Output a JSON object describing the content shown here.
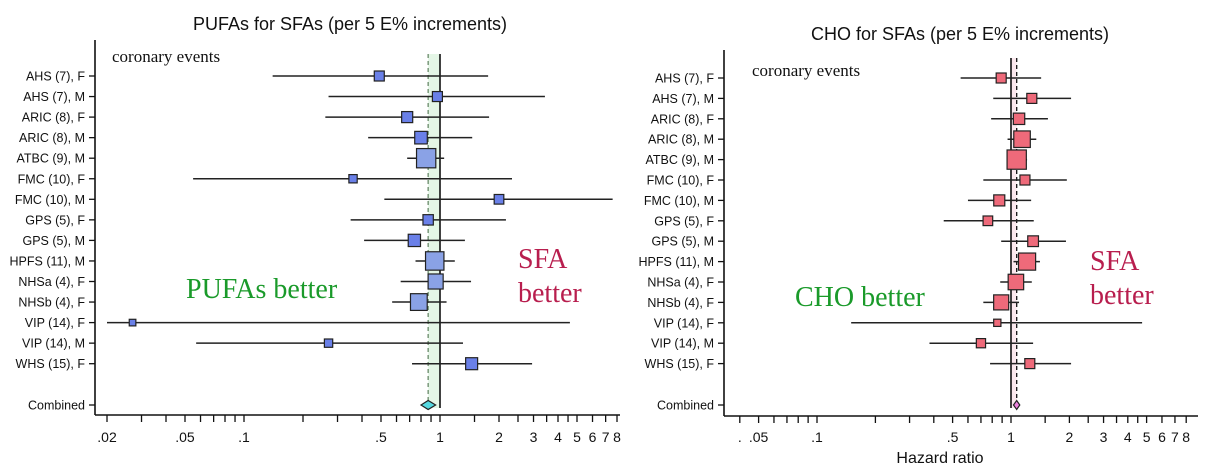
{
  "chart_data": [
    {
      "type": "forest",
      "title": "PUFAs for SFAs (per 5 E% increments)",
      "subtitle": "coronary events",
      "xlabel": "",
      "xscale": "log",
      "xlim": [
        0.0185,
        8.3
      ],
      "xticks": [
        0.02,
        0.03,
        0.04,
        0.05,
        0.06,
        0.07,
        0.08,
        0.09,
        0.1,
        0.2,
        0.3,
        0.4,
        0.5,
        0.6,
        0.7,
        0.8,
        0.9,
        1,
        1.5,
        2,
        2.5,
        3,
        3.5,
        4,
        4.5,
        5,
        6,
        7,
        8
      ],
      "xtick_labels": [
        {
          "value": 0.02,
          "label": ".02"
        },
        {
          "value": 0.05,
          "label": ".05"
        },
        {
          "value": 0.1,
          "label": ".1"
        },
        {
          "value": 0.5,
          "label": ".5"
        },
        {
          "value": 1,
          "label": "1"
        },
        {
          "value": 2,
          "label": "2"
        },
        {
          "value": 3,
          "label": "3"
        },
        {
          "value": 4,
          "label": "4"
        },
        {
          "value": 5,
          "label": "5"
        },
        {
          "value": 6,
          "label": "6"
        },
        {
          "value": 7,
          "label": "7"
        },
        {
          "value": 8,
          "label": "8"
        }
      ],
      "reference_line": 1,
      "pooled_line": 0.87,
      "annotation_left": "PUFAs better",
      "annotation_right_1": "SFA",
      "annotation_right_2": "better",
      "colors": {
        "box": "#6a80e8",
        "box_light": "#8aa2e6",
        "diamond": "#55d8e0",
        "band": "#e4f6e6",
        "annot_left": "#1a9a2a",
        "annot_right": "#b81e4e"
      },
      "studies": [
        {
          "label": "AHS (7), F",
          "hr": 0.49,
          "lo": 0.14,
          "hi": 1.76,
          "weight": 1
        },
        {
          "label": "AHS (7), M",
          "hr": 0.97,
          "lo": 0.27,
          "hi": 3.43,
          "weight": 1
        },
        {
          "label": "ARIC (8), F",
          "hr": 0.68,
          "lo": 0.26,
          "hi": 1.78,
          "weight": 1.3
        },
        {
          "label": "ARIC (8), M",
          "hr": 0.8,
          "lo": 0.43,
          "hi": 1.46,
          "weight": 1.8
        },
        {
          "label": "ATBC (9), M",
          "hr": 0.85,
          "lo": 0.68,
          "hi": 1.05,
          "weight": 5
        },
        {
          "label": "FMC (10), F",
          "hr": 0.36,
          "lo": 0.055,
          "hi": 2.33,
          "weight": 0.6
        },
        {
          "label": "FMC (10), M",
          "hr": 2.0,
          "lo": 0.52,
          "hi": 7.6,
          "weight": 0.9
        },
        {
          "label": "GPS (5), F",
          "hr": 0.87,
          "lo": 0.35,
          "hi": 2.17,
          "weight": 1.1
        },
        {
          "label": "GPS (5), M",
          "hr": 0.74,
          "lo": 0.41,
          "hi": 1.34,
          "weight": 1.7
        },
        {
          "label": "HPFS (11), M",
          "hr": 0.94,
          "lo": 0.75,
          "hi": 1.19,
          "weight": 4.5
        },
        {
          "label": "NHSa (4), F",
          "hr": 0.95,
          "lo": 0.63,
          "hi": 1.44,
          "weight": 2.8
        },
        {
          "label": "NHSb (4), F",
          "hr": 0.78,
          "lo": 0.57,
          "hi": 1.08,
          "weight": 3.6
        },
        {
          "label": "VIP (14), F",
          "hr": 0.027,
          "lo": 0.02,
          "hi": 4.6,
          "weight": 0.3
        },
        {
          "label": "VIP (14), M",
          "hr": 0.27,
          "lo": 0.057,
          "hi": 1.31,
          "weight": 0.6
        },
        {
          "label": "WHS (15), F",
          "hr": 1.45,
          "lo": 0.72,
          "hi": 2.95,
          "weight": 1.6
        }
      ],
      "combined": {
        "label": "Combined",
        "hr": 0.87,
        "lo": 0.8,
        "hi": 0.95
      }
    },
    {
      "type": "forest",
      "title": "CHO for SFAs (per 5 E% increments)",
      "subtitle": "coronary events",
      "xlabel": "Hazard ratio",
      "xscale": "log",
      "xlim": [
        0.033,
        9.5
      ],
      "xticks": [
        0.04,
        0.05,
        0.06,
        0.07,
        0.08,
        0.09,
        0.1,
        0.2,
        0.3,
        0.4,
        0.5,
        0.6,
        0.7,
        0.8,
        0.9,
        1,
        1.5,
        2,
        2.5,
        3,
        3.5,
        4,
        4.5,
        5,
        6,
        7,
        8
      ],
      "xtick_labels": [
        {
          "value": 0.04,
          "label": "."
        },
        {
          "value": 0.05,
          "label": ".05"
        },
        {
          "value": 0.1,
          "label": ".1"
        },
        {
          "value": 0.5,
          "label": ".5"
        },
        {
          "value": 1,
          "label": "1"
        },
        {
          "value": 2,
          "label": "2"
        },
        {
          "value": 3,
          "label": "3"
        },
        {
          "value": 4,
          "label": "4"
        },
        {
          "value": 5,
          "label": "5"
        },
        {
          "value": 6,
          "label": "6"
        },
        {
          "value": 7,
          "label": "7"
        },
        {
          "value": 8,
          "label": "8"
        }
      ],
      "reference_line": 1,
      "pooled_line": 1.07,
      "annotation_left": "CHO better",
      "annotation_right_1": "SFA",
      "annotation_right_2": "better",
      "colors": {
        "box": "#ee6a7a",
        "box_light": "#f08a96",
        "diamond": "#ee82e0",
        "band": "#fbe8ee",
        "annot_left": "#1a9a2a",
        "annot_right": "#b81e4e"
      },
      "studies": [
        {
          "label": "AHS (7), F",
          "hr": 0.89,
          "lo": 0.55,
          "hi": 1.43,
          "weight": 1
        },
        {
          "label": "AHS (7), M",
          "hr": 1.28,
          "lo": 0.81,
          "hi": 2.04,
          "weight": 1
        },
        {
          "label": "ARIC (8), F",
          "hr": 1.1,
          "lo": 0.79,
          "hi": 1.55,
          "weight": 1.4
        },
        {
          "label": "ARIC (8), M",
          "hr": 1.14,
          "lo": 0.96,
          "hi": 1.35,
          "weight": 3.5
        },
        {
          "label": "ATBC (9), M",
          "hr": 1.07,
          "lo": 0.95,
          "hi": 1.21,
          "weight": 5
        },
        {
          "label": "FMC (10), F",
          "hr": 1.18,
          "lo": 0.72,
          "hi": 1.94,
          "weight": 1
        },
        {
          "label": "FMC (10), M",
          "hr": 0.87,
          "lo": 0.6,
          "hi": 1.27,
          "weight": 1.3
        },
        {
          "label": "GPS (5), F",
          "hr": 0.76,
          "lo": 0.45,
          "hi": 1.31,
          "weight": 0.9
        },
        {
          "label": "GPS (5), M",
          "hr": 1.3,
          "lo": 0.89,
          "hi": 1.92,
          "weight": 1.2
        },
        {
          "label": "HPFS (11), M",
          "hr": 1.21,
          "lo": 1.03,
          "hi": 1.41,
          "weight": 3.8
        },
        {
          "label": "NHSa (4), F",
          "hr": 1.06,
          "lo": 0.88,
          "hi": 1.28,
          "weight": 3
        },
        {
          "label": "NHSb (4), F",
          "hr": 0.89,
          "lo": 0.72,
          "hi": 1.1,
          "weight": 2.8
        },
        {
          "label": "VIP (14), F",
          "hr": 0.85,
          "lo": 0.15,
          "hi": 4.74,
          "weight": 0.4
        },
        {
          "label": "VIP (14), M",
          "hr": 0.7,
          "lo": 0.38,
          "hi": 1.3,
          "weight": 0.8
        },
        {
          "label": "WHS (15), F",
          "hr": 1.25,
          "lo": 0.78,
          "hi": 2.04,
          "weight": 1
        }
      ],
      "combined": {
        "label": "Combined",
        "hr": 1.07,
        "lo": 1.03,
        "hi": 1.11
      }
    }
  ]
}
